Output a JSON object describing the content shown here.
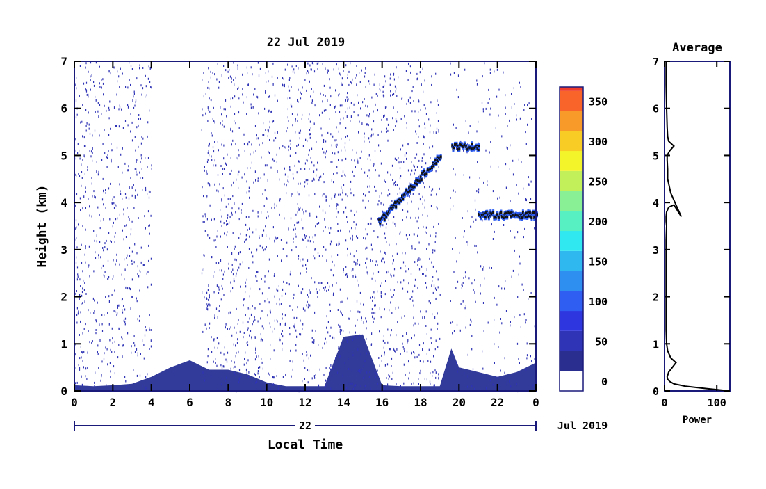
{
  "chart_data": [
    {
      "type": "heatmap",
      "title": "22 Jul 2019",
      "xlabel": "Local Time",
      "ylabel": "Height (km)",
      "x_ticks": [
        "0",
        "2",
        "4",
        "6",
        "8",
        "10",
        "12",
        "14",
        "16",
        "18",
        "20",
        "22",
        "0"
      ],
      "x_range": [
        0,
        24
      ],
      "y_ticks": [
        "0",
        "1",
        "2",
        "3",
        "4",
        "5",
        "6",
        "7"
      ],
      "y_range": [
        0,
        7
      ],
      "date_bar_label": "22",
      "date_suffix": "Jul 2019",
      "grid": false,
      "surface_echo_top_km": [
        {
          "t": 0,
          "h": 0.12
        },
        {
          "t": 1,
          "h": 0.1
        },
        {
          "t": 2,
          "h": 0.12
        },
        {
          "t": 3,
          "h": 0.15
        },
        {
          "t": 4,
          "h": 0.3
        },
        {
          "t": 5,
          "h": 0.5
        },
        {
          "t": 6,
          "h": 0.65
        },
        {
          "t": 7,
          "h": 0.45
        },
        {
          "t": 8,
          "h": 0.45
        },
        {
          "t": 9,
          "h": 0.35
        },
        {
          "t": 10,
          "h": 0.18
        },
        {
          "t": 11,
          "h": 0.1
        },
        {
          "t": 12,
          "h": 0.1
        },
        {
          "t": 13,
          "h": 0.1
        },
        {
          "t": 14,
          "h": 1.15
        },
        {
          "t": 15,
          "h": 1.2
        },
        {
          "t": 16,
          "h": 0.12
        },
        {
          "t": 17,
          "h": 0.1
        },
        {
          "t": 18,
          "h": 0.1
        },
        {
          "t": 19,
          "h": 0.1
        },
        {
          "t": 19.6,
          "h": 0.9
        },
        {
          "t": 20,
          "h": 0.5
        },
        {
          "t": 21,
          "h": 0.4
        },
        {
          "t": 22,
          "h": 0.3
        },
        {
          "t": 23,
          "h": 0.4
        },
        {
          "t": 24,
          "h": 0.6
        }
      ],
      "cloud_layers": [
        {
          "t_start": 15.8,
          "t_end": 19.0,
          "h_start": 3.6,
          "h_end": 5.0
        },
        {
          "t_start": 19.6,
          "t_end": 21.0,
          "h_start": 5.2,
          "h_end": 5.2
        },
        {
          "t_start": 21.0,
          "t_end": 24.0,
          "h_start": 3.75,
          "h_end": 3.75
        }
      ],
      "noise_gaps_hours": [
        [
          4.0,
          6.6
        ],
        [
          19.0,
          19.5
        ]
      ],
      "color_key": "Power"
    },
    {
      "type": "line",
      "title": "Average",
      "xlabel": "Power",
      "ylabel": "",
      "x_ticks": [
        "0",
        "100"
      ],
      "x_range": [
        0,
        125
      ],
      "y_ticks": [
        "0",
        "1",
        "2",
        "3",
        "4",
        "5",
        "6",
        "7"
      ],
      "y_range": [
        0,
        7
      ],
      "series": [
        {
          "x": [
            125,
            80,
            40,
            18,
            10,
            6,
            5,
            8,
            15,
            22,
            12,
            6,
            4,
            3,
            3,
            3,
            3,
            3,
            3,
            4,
            3,
            3,
            4,
            8,
            18,
            32,
            12,
            6,
            6,
            5,
            5,
            10,
            18,
            8,
            6,
            5,
            4,
            3,
            3
          ],
          "y": [
            0.0,
            0.05,
            0.1,
            0.15,
            0.2,
            0.25,
            0.3,
            0.4,
            0.5,
            0.6,
            0.7,
            0.85,
            1.0,
            1.3,
            1.6,
            2.0,
            2.4,
            2.8,
            3.2,
            3.5,
            3.6,
            3.7,
            3.8,
            3.9,
            3.95,
            3.7,
            4.2,
            4.5,
            4.7,
            4.9,
            5.0,
            5.1,
            5.2,
            5.3,
            5.4,
            5.6,
            6.0,
            6.5,
            7.0
          ]
        }
      ]
    }
  ],
  "colorbar": {
    "tick_labels": [
      "0",
      "50",
      "100",
      "150",
      "200",
      "250",
      "300",
      "350"
    ],
    "tick_values": [
      0,
      50,
      100,
      150,
      200,
      250,
      300,
      350
    ],
    "range": [
      0,
      380
    ],
    "colors": [
      "#ffffff",
      "#2a2f8f",
      "#2f33b5",
      "#2e36e0",
      "#2f5ff2",
      "#2f8ff0",
      "#2fb8f0",
      "#2fe8f0",
      "#57f0c2",
      "#8af095",
      "#c2f05a",
      "#f4f42a",
      "#f8cc24",
      "#f89a2a",
      "#f8642a",
      "#f03a2a"
    ],
    "color_steps": [
      0,
      25,
      50,
      75,
      100,
      125,
      150,
      175,
      200,
      225,
      250,
      275,
      300,
      325,
      350,
      375
    ]
  }
}
